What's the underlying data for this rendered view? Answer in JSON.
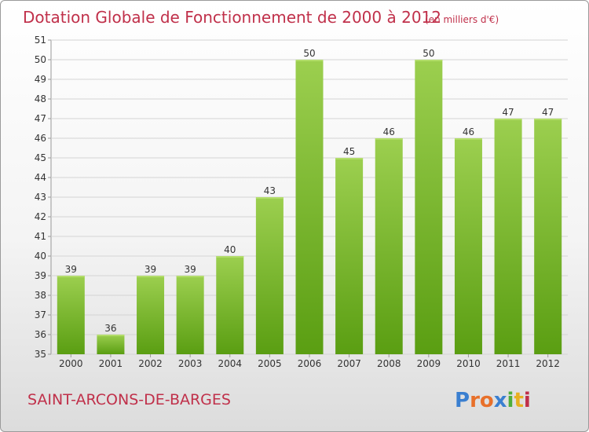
{
  "chart_data": {
    "type": "bar",
    "title": "Dotation Globale de Fonctionnement de 2000 à 2012",
    "unit": "(en milliers d'€)",
    "categories": [
      "2000",
      "2001",
      "2002",
      "2003",
      "2004",
      "2005",
      "2006",
      "2007",
      "2008",
      "2009",
      "2010",
      "2011",
      "2012"
    ],
    "values": [
      39,
      36,
      39,
      39,
      40,
      43,
      50,
      45,
      46,
      50,
      46,
      47,
      47
    ],
    "ylim": [
      35,
      51
    ],
    "yticks": [
      35,
      36,
      37,
      38,
      39,
      40,
      41,
      42,
      43,
      44,
      45,
      46,
      47,
      48,
      49,
      50,
      51
    ],
    "grid": "horizontal",
    "colors": {
      "bar_top": "#9ccf4f",
      "bar_bottom": "#5a9e12",
      "title": "#c0304a"
    }
  },
  "commune_name": "SAINT-ARCONS-DE-BARGES",
  "logo": {
    "letters": [
      "P",
      "r",
      "o",
      "x",
      "i",
      "t",
      "i"
    ],
    "colors": [
      "#3a7fd0",
      "#e8702a",
      "#e8702a",
      "#3a7fd0",
      "#4fae3a",
      "#e8b020",
      "#c0304a"
    ]
  }
}
